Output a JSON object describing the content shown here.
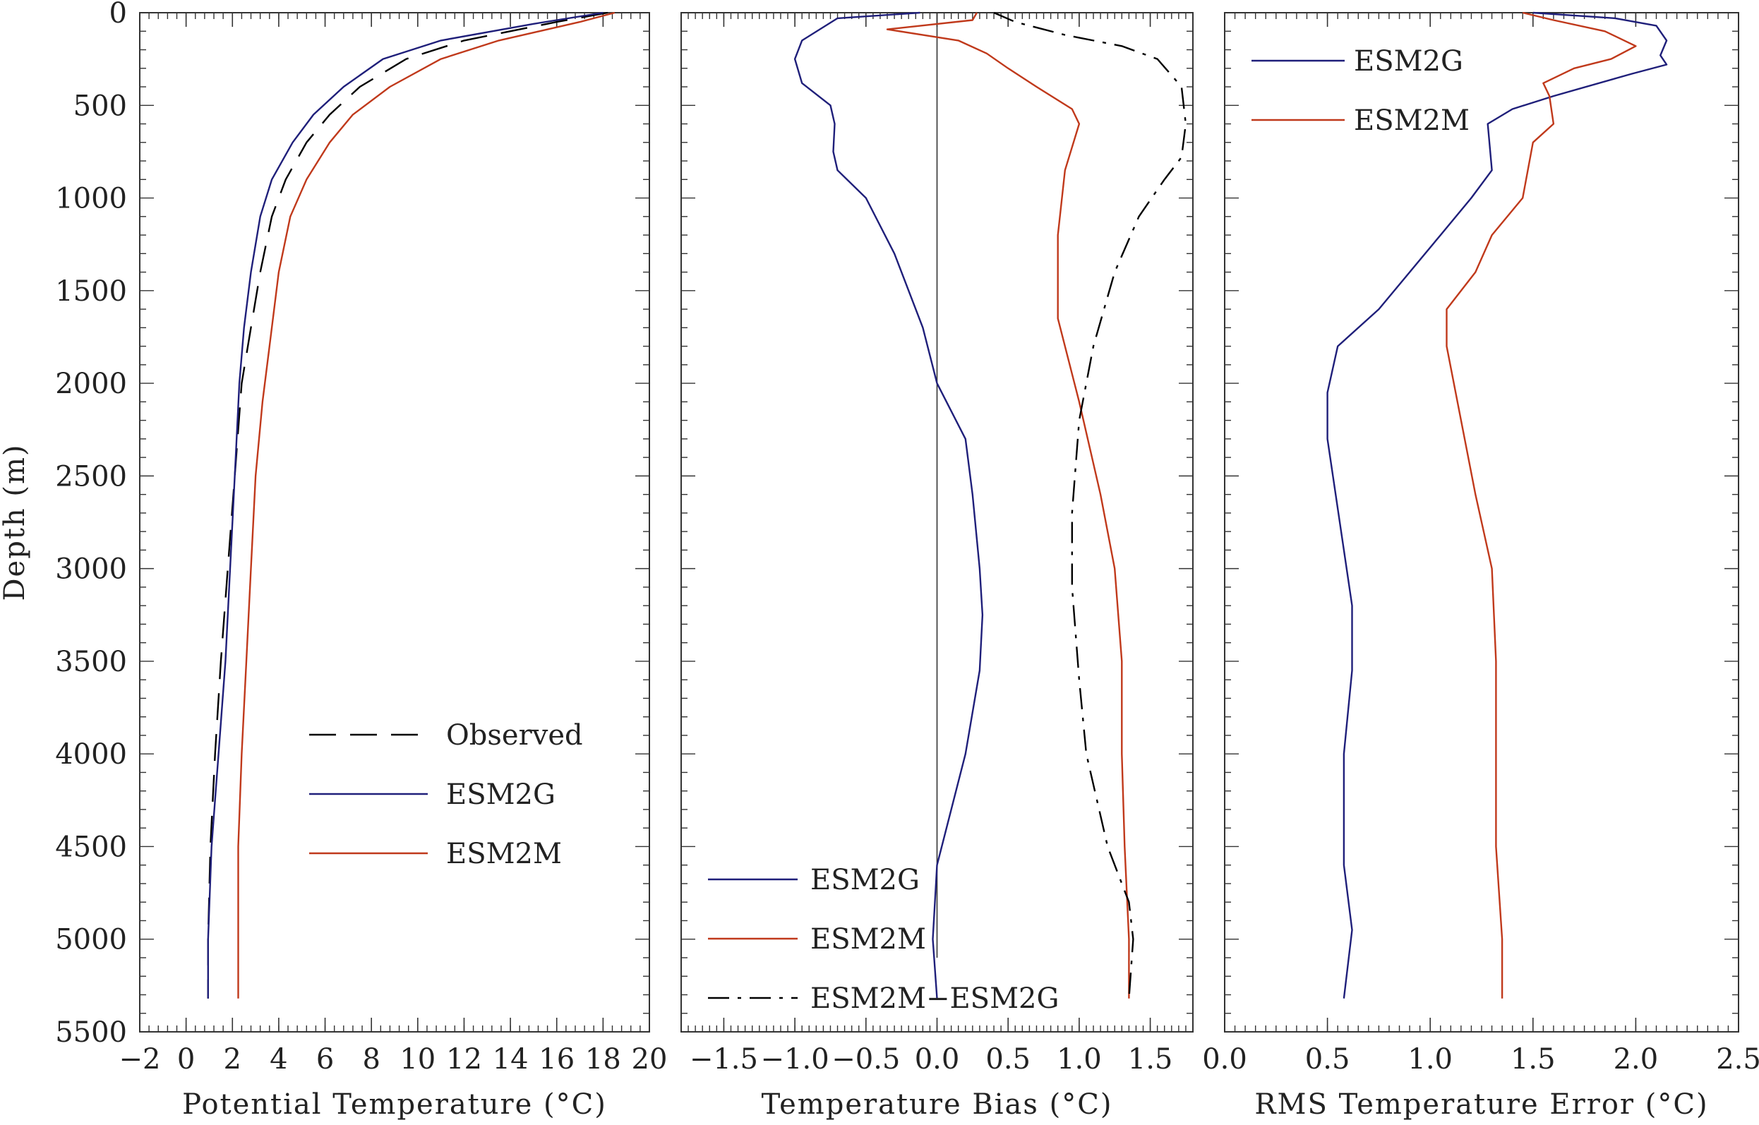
{
  "colors": {
    "observed": "#000000",
    "esm2g": "#1f1f7a",
    "esm2m": "#c0391b",
    "difference": "#000000",
    "axis": "#333333"
  },
  "depth_axis": {
    "label": "Depth (m)",
    "range": [
      0,
      5500
    ],
    "ticks": [
      "0",
      "500",
      "1000",
      "1500",
      "2000",
      "2500",
      "3000",
      "3500",
      "4000",
      "4500",
      "5000",
      "5500"
    ]
  },
  "chart_data": [
    {
      "type": "line",
      "xlabel": "Potential Temperature (°C)",
      "ylabel": "Depth (m)",
      "xlim": [
        -2,
        20
      ],
      "ylim": [
        5500,
        0
      ],
      "x_ticks": [
        "−2",
        "0",
        "2",
        "4",
        "6",
        "8",
        "10",
        "12",
        "14",
        "16",
        "18",
        "20"
      ],
      "legend_position": "lower-right",
      "series": [
        {
          "name": "Observed",
          "style": "dashed",
          "color": "#000000",
          "points": [
            [
              18.2,
              0
            ],
            [
              16,
              50
            ],
            [
              12,
              150
            ],
            [
              9.5,
              250
            ],
            [
              7.5,
              400
            ],
            [
              6.2,
              550
            ],
            [
              5.2,
              700
            ],
            [
              4.3,
              900
            ],
            [
              3.7,
              1100
            ],
            [
              3.2,
              1400
            ],
            [
              2.8,
              1700
            ],
            [
              2.4,
              2000
            ],
            [
              2.1,
              2500
            ],
            [
              1.8,
              3000
            ],
            [
              1.5,
              3500
            ],
            [
              1.25,
              4000
            ],
            [
              1.05,
              4500
            ],
            [
              0.95,
              5000
            ],
            [
              0.95,
              5320
            ]
          ]
        },
        {
          "name": "ESM2G",
          "style": "solid",
          "color": "#1f1f7a",
          "points": [
            [
              18.0,
              0
            ],
            [
              15,
              60
            ],
            [
              11,
              150
            ],
            [
              8.5,
              250
            ],
            [
              6.8,
              400
            ],
            [
              5.5,
              550
            ],
            [
              4.6,
              700
            ],
            [
              3.7,
              900
            ],
            [
              3.2,
              1100
            ],
            [
              2.8,
              1400
            ],
            [
              2.5,
              1700
            ],
            [
              2.3,
              2000
            ],
            [
              2.1,
              2500
            ],
            [
              1.9,
              3000
            ],
            [
              1.7,
              3500
            ],
            [
              1.4,
              4000
            ],
            [
              1.1,
              4500
            ],
            [
              0.95,
              5000
            ],
            [
              0.95,
              5320
            ]
          ]
        },
        {
          "name": "ESM2M",
          "style": "solid",
          "color": "#c0391b",
          "points": [
            [
              18.5,
              0
            ],
            [
              17,
              50
            ],
            [
              13.5,
              150
            ],
            [
              11,
              250
            ],
            [
              8.8,
              400
            ],
            [
              7.2,
              550
            ],
            [
              6.2,
              700
            ],
            [
              5.2,
              900
            ],
            [
              4.5,
              1100
            ],
            [
              4,
              1400
            ],
            [
              3.6,
              1800
            ],
            [
              3.3,
              2100
            ],
            [
              3.0,
              2500
            ],
            [
              2.8,
              3000
            ],
            [
              2.6,
              3500
            ],
            [
              2.4,
              4000
            ],
            [
              2.25,
              4500
            ],
            [
              2.25,
              5000
            ],
            [
              2.25,
              5320
            ]
          ]
        }
      ]
    },
    {
      "type": "line",
      "xlabel": "Temperature Bias (°C)",
      "xlim": [
        -1.8,
        1.8
      ],
      "x_ticks": [
        "−1.5",
        "−1.0",
        "−0.5",
        "0.0",
        "0.5",
        "1.0",
        "1.5"
      ],
      "zero_line": 0,
      "legend_position": "lower-left",
      "series": [
        {
          "name": "ESM2G",
          "style": "solid",
          "color": "#1f1f7a",
          "points": [
            [
              -0.12,
              0
            ],
            [
              -0.7,
              30
            ],
            [
              -0.95,
              150
            ],
            [
              -1.0,
              250
            ],
            [
              -0.95,
              380
            ],
            [
              -0.75,
              500
            ],
            [
              -0.72,
              600
            ],
            [
              -0.73,
              750
            ],
            [
              -0.7,
              850
            ],
            [
              -0.5,
              1000
            ],
            [
              -0.3,
              1300
            ],
            [
              -0.1,
              1700
            ],
            [
              0.0,
              2000
            ],
            [
              0.2,
              2300
            ],
            [
              0.25,
              2600
            ],
            [
              0.3,
              3000
            ],
            [
              0.32,
              3250
            ],
            [
              0.3,
              3550
            ],
            [
              0.2,
              4000
            ],
            [
              0.0,
              4600
            ],
            [
              -0.03,
              5000
            ],
            [
              0.0,
              5320
            ]
          ]
        },
        {
          "name": "ESM2M",
          "style": "solid",
          "color": "#c0391b",
          "points": [
            [
              0.28,
              0
            ],
            [
              0.25,
              40
            ],
            [
              -0.35,
              90
            ],
            [
              0.15,
              150
            ],
            [
              0.35,
              220
            ],
            [
              0.5,
              300
            ],
            [
              0.7,
              400
            ],
            [
              0.95,
              520
            ],
            [
              1.0,
              600
            ],
            [
              0.9,
              850
            ],
            [
              0.85,
              1200
            ],
            [
              0.85,
              1650
            ],
            [
              1.0,
              2100
            ],
            [
              1.15,
              2600
            ],
            [
              1.25,
              3000
            ],
            [
              1.3,
              3500
            ],
            [
              1.3,
              4000
            ],
            [
              1.32,
              4500
            ],
            [
              1.35,
              5000
            ],
            [
              1.35,
              5320
            ]
          ]
        },
        {
          "name": "ESM2M−ESM2G",
          "style": "dashdot",
          "color": "#000000",
          "points": [
            [
              0.4,
              0
            ],
            [
              0.55,
              50
            ],
            [
              0.9,
              120
            ],
            [
              1.3,
              180
            ],
            [
              1.55,
              250
            ],
            [
              1.72,
              400
            ],
            [
              1.75,
              600
            ],
            [
              1.72,
              780
            ],
            [
              1.6,
              900
            ],
            [
              1.42,
              1100
            ],
            [
              1.25,
              1400
            ],
            [
              1.1,
              1800
            ],
            [
              1.0,
              2200
            ],
            [
              0.95,
              2700
            ],
            [
              0.95,
              3100
            ],
            [
              1.0,
              3600
            ],
            [
              1.05,
              4000
            ],
            [
              1.2,
              4500
            ],
            [
              1.35,
              4800
            ],
            [
              1.38,
              5000
            ],
            [
              1.35,
              5320
            ]
          ]
        }
      ]
    },
    {
      "type": "line",
      "xlabel": "RMS Temperature Error (°C)",
      "xlim": [
        0,
        2.5
      ],
      "x_ticks": [
        "0.0",
        "0.5",
        "1.0",
        "1.5",
        "2.0",
        "2.5"
      ],
      "legend_position": "top-left",
      "series": [
        {
          "name": "ESM2G",
          "style": "solid",
          "color": "#1f1f7a",
          "points": [
            [
              1.5,
              0
            ],
            [
              1.9,
              30
            ],
            [
              2.1,
              70
            ],
            [
              2.15,
              150
            ],
            [
              2.12,
              230
            ],
            [
              2.15,
              280
            ],
            [
              1.98,
              330
            ],
            [
              1.6,
              450
            ],
            [
              1.4,
              520
            ],
            [
              1.28,
              600
            ],
            [
              1.3,
              850
            ],
            [
              1.2,
              1000
            ],
            [
              1.05,
              1200
            ],
            [
              0.9,
              1400
            ],
            [
              0.75,
              1600
            ],
            [
              0.55,
              1800
            ],
            [
              0.5,
              2050
            ],
            [
              0.5,
              2300
            ],
            [
              0.58,
              2900
            ],
            [
              0.62,
              3200
            ],
            [
              0.62,
              3550
            ],
            [
              0.58,
              4000
            ],
            [
              0.58,
              4300
            ],
            [
              0.58,
              4600
            ],
            [
              0.62,
              4950
            ],
            [
              0.58,
              5320
            ]
          ]
        },
        {
          "name": "ESM2M",
          "style": "solid",
          "color": "#c0391b",
          "points": [
            [
              1.45,
              0
            ],
            [
              1.6,
              40
            ],
            [
              1.85,
              100
            ],
            [
              2.0,
              180
            ],
            [
              1.88,
              250
            ],
            [
              1.7,
              300
            ],
            [
              1.55,
              380
            ],
            [
              1.58,
              450
            ],
            [
              1.6,
              600
            ],
            [
              1.5,
              700
            ],
            [
              1.45,
              1000
            ],
            [
              1.3,
              1200
            ],
            [
              1.22,
              1400
            ],
            [
              1.08,
              1600
            ],
            [
              1.08,
              1800
            ],
            [
              1.15,
              2200
            ],
            [
              1.22,
              2600
            ],
            [
              1.3,
              3000
            ],
            [
              1.32,
              3500
            ],
            [
              1.32,
              4000
            ],
            [
              1.32,
              4500
            ],
            [
              1.35,
              5000
            ],
            [
              1.35,
              5320
            ]
          ]
        }
      ]
    }
  ]
}
